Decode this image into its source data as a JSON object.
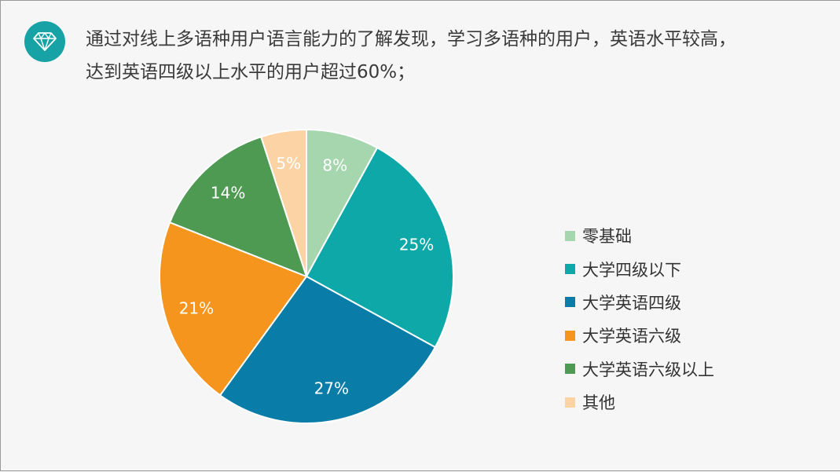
{
  "headline": {
    "line1": "通过对线上多语种用户语言能力的了解发现，学习多语种的用户，英语水平较高，",
    "line2": "达到英语四级以上水平的用户超过60%；"
  },
  "icons": {
    "badge": "diamond-icon"
  },
  "chart_data": {
    "type": "pie",
    "title": "",
    "legend_position": "right",
    "labels_shown": "percent",
    "slices": [
      {
        "label": "零基础",
        "value": 8,
        "display": "8%",
        "color": "#a5d6ae"
      },
      {
        "label": "大学四级以下",
        "value": 25,
        "display": "25%",
        "color": "#0ea8a8"
      },
      {
        "label": "大学英语四级",
        "value": 27,
        "display": "27%",
        "color": "#0a7ca8"
      },
      {
        "label": "大学英语六级",
        "value": 21,
        "display": "21%",
        "color": "#f5951e"
      },
      {
        "label": "大学英语六级以上",
        "value": 14,
        "display": "14%",
        "color": "#4e9a53"
      },
      {
        "label": "其他",
        "value": 5,
        "display": "5%",
        "color": "#fcd3a4"
      }
    ]
  }
}
